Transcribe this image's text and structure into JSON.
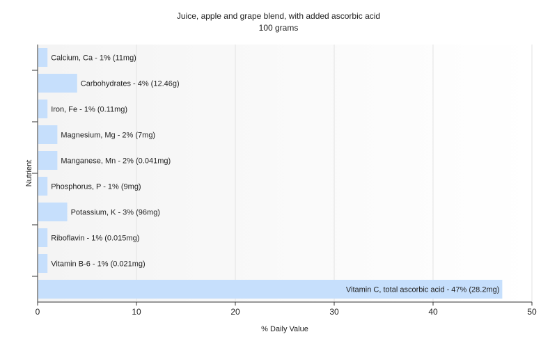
{
  "chart_data": {
    "type": "bar",
    "orientation": "horizontal",
    "title": "Juice, apple and grape blend, with added ascorbic acid",
    "subtitle": "100 grams",
    "xlabel": "% Daily Value",
    "ylabel": "Nutrient",
    "xlim": [
      0,
      50
    ],
    "xticks": [
      0,
      10,
      20,
      30,
      40,
      50
    ],
    "grid": true,
    "bar_color": "#c6dffc",
    "categories": [
      "Calcium, Ca",
      "Carbohydrates",
      "Iron, Fe",
      "Magnesium, Mg",
      "Manganese, Mn",
      "Phosphorus, P",
      "Potassium, K",
      "Riboflavin",
      "Vitamin B-6",
      "Vitamin C, total ascorbic acid"
    ],
    "values": [
      1,
      4,
      1,
      2,
      2,
      1,
      3,
      1,
      1,
      47
    ],
    "labels": [
      "Calcium, Ca - 1% (11mg)",
      "Carbohydrates - 4% (12.46g)",
      "Iron, Fe - 1% (0.11mg)",
      "Magnesium, Mg - 2% (7mg)",
      "Manganese, Mn - 2% (0.041mg)",
      "Phosphorus, P - 1% (9mg)",
      "Potassium, K - 3% (96mg)",
      "Riboflavin - 1% (0.015mg)",
      "Vitamin B-6 - 1% (0.021mg)",
      "Vitamin C, total ascorbic acid - 47% (28.2mg)"
    ]
  }
}
